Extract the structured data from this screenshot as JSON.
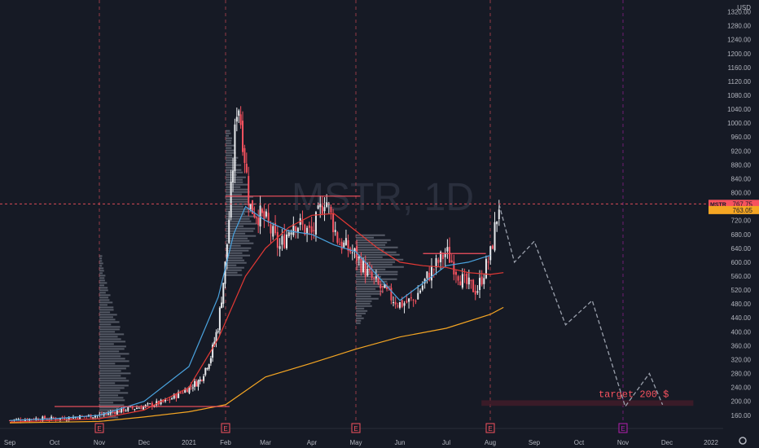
{
  "chart_data": {
    "type": "candlestick",
    "watermark": "MSTR, 1D",
    "currency": "USD",
    "y_axis": {
      "ticks": [
        160,
        200,
        240,
        280,
        320,
        360,
        400,
        440,
        480,
        520,
        560,
        600,
        640,
        680,
        720,
        760,
        800,
        840,
        880,
        920,
        960,
        1000,
        1040,
        1080,
        1120,
        1160,
        1200,
        1240,
        1280,
        1320
      ],
      "ylim": [
        136,
        1340
      ]
    },
    "x_axis": {
      "ticks": [
        "Sep",
        "Oct",
        "Nov",
        "Dec",
        "2021",
        "Feb",
        "Mar",
        "Apr",
        "May",
        "Jun",
        "Jul",
        "Aug",
        "Sep",
        "Oct",
        "Nov",
        "Dec",
        "2022"
      ]
    },
    "price_labels": [
      {
        "text": "MSTR",
        "value": "767.75",
        "y": 767.75,
        "color": "#f7525f"
      },
      {
        "text": "",
        "value": "763.05",
        "y": 750,
        "color": "#f5a623"
      }
    ],
    "earnings_markers": [
      {
        "label": "E",
        "month_index": 2.0,
        "color": "#f7525f"
      },
      {
        "label": "E",
        "month_index": 5.0,
        "color": "#f7525f"
      },
      {
        "label": "E",
        "month_index": 8.0,
        "color": "#f7525f"
      },
      {
        "label": "E",
        "month_index": 11.0,
        "color": "#f7525f"
      },
      {
        "label": "E",
        "month_index": 14.0,
        "color": "#b41fb0"
      }
    ],
    "horizontal_levels": [
      {
        "from": 1.0,
        "to": 5.1,
        "y": 185,
        "color": "#f7525f"
      },
      {
        "from": 5.0,
        "to": 8.1,
        "y": 790,
        "color": "#f7525f"
      },
      {
        "from": 9.5,
        "to": 10.9,
        "y": 625,
        "color": "#f7525f"
      }
    ],
    "crosshair_y": 767.75,
    "target_zone": {
      "label": "target 200 $",
      "y_low": 187,
      "y_high": 203,
      "from": 10.8,
      "to": 15.6
    },
    "moving_averages": [
      {
        "color": "#4aa3df",
        "points": [
          [
            0,
            145
          ],
          [
            1,
            150
          ],
          [
            2,
            160
          ],
          [
            3,
            200
          ],
          [
            4,
            300
          ],
          [
            4.8,
            500
          ],
          [
            5.2,
            680
          ],
          [
            5.5,
            760
          ],
          [
            6,
            720
          ],
          [
            6.5,
            690
          ],
          [
            7,
            680
          ],
          [
            7.5,
            650
          ],
          [
            8,
            630
          ],
          [
            8.5,
            560
          ],
          [
            9,
            490
          ],
          [
            9.5,
            540
          ],
          [
            10,
            590
          ],
          [
            10.5,
            600
          ],
          [
            11,
            620
          ]
        ]
      },
      {
        "color": "#e53935",
        "points": [
          [
            0,
            140
          ],
          [
            1,
            145
          ],
          [
            2,
            150
          ],
          [
            3,
            175
          ],
          [
            4,
            240
          ],
          [
            4.8,
            380
          ],
          [
            5.5,
            560
          ],
          [
            6,
            640
          ],
          [
            6.5,
            700
          ],
          [
            7,
            735
          ],
          [
            7.5,
            740
          ],
          [
            8,
            690
          ],
          [
            8.5,
            640
          ],
          [
            9,
            600
          ],
          [
            9.5,
            590
          ],
          [
            10,
            585
          ],
          [
            10.5,
            570
          ],
          [
            11,
            565
          ],
          [
            11.3,
            570
          ]
        ]
      },
      {
        "color": "#f5a623",
        "points": [
          [
            0,
            138
          ],
          [
            1,
            140
          ],
          [
            2,
            142
          ],
          [
            3,
            155
          ],
          [
            4,
            170
          ],
          [
            5,
            190
          ],
          [
            6,
            270
          ],
          [
            7,
            310
          ],
          [
            8,
            350
          ],
          [
            9,
            385
          ],
          [
            10,
            410
          ],
          [
            11,
            450
          ],
          [
            11.3,
            470
          ]
        ]
      }
    ],
    "projection": [
      [
        11.2,
        767
      ],
      [
        11.55,
        600
      ],
      [
        12,
        660
      ],
      [
        12.7,
        420
      ],
      [
        13.3,
        490
      ],
      [
        14.05,
        185
      ],
      [
        14.6,
        280
      ],
      [
        14.9,
        190
      ]
    ],
    "volume_profiles": [
      {
        "x": 2.0,
        "y_from": 150,
        "y_to": 620,
        "peak_y": 290,
        "width": 0.7
      },
      {
        "x": 5.0,
        "y_from": 560,
        "y_to": 980,
        "peak_y": 720,
        "width": 0.8
      },
      {
        "x": 8.0,
        "y_from": 420,
        "y_to": 680,
        "peak_y": 600,
        "width": 1.1
      }
    ],
    "candles": {
      "generator": "piecewise",
      "anchors": [
        [
          0,
          145
        ],
        [
          0.5,
          150
        ],
        [
          1,
          150
        ],
        [
          1.5,
          155
        ],
        [
          2,
          160
        ],
        [
          2.5,
          175
        ],
        [
          3,
          185
        ],
        [
          3.5,
          200
        ],
        [
          4,
          240
        ],
        [
          4.3,
          260
        ],
        [
          4.6,
          330
        ],
        [
          4.8,
          420
        ],
        [
          5.0,
          600
        ],
        [
          5.15,
          820
        ],
        [
          5.3,
          1080
        ],
        [
          5.45,
          940
        ],
        [
          5.6,
          760
        ],
        [
          6,
          720
        ],
        [
          6.3,
          640
        ],
        [
          6.6,
          720
        ],
        [
          7,
          680
        ],
        [
          7.3,
          790
        ],
        [
          7.6,
          660
        ],
        [
          8,
          620
        ],
        [
          8.3,
          560
        ],
        [
          8.6,
          520
        ],
        [
          9,
          480
        ],
        [
          9.3,
          490
        ],
        [
          9.6,
          560
        ],
        [
          10,
          630
        ],
        [
          10.4,
          540
        ],
        [
          10.7,
          520
        ],
        [
          11,
          620
        ],
        [
          11.2,
          767
        ]
      ],
      "n": 230
    }
  },
  "labels": {
    "currency": "USD",
    "watermark": "MSTR, 1D",
    "target": "target 200 $"
  }
}
